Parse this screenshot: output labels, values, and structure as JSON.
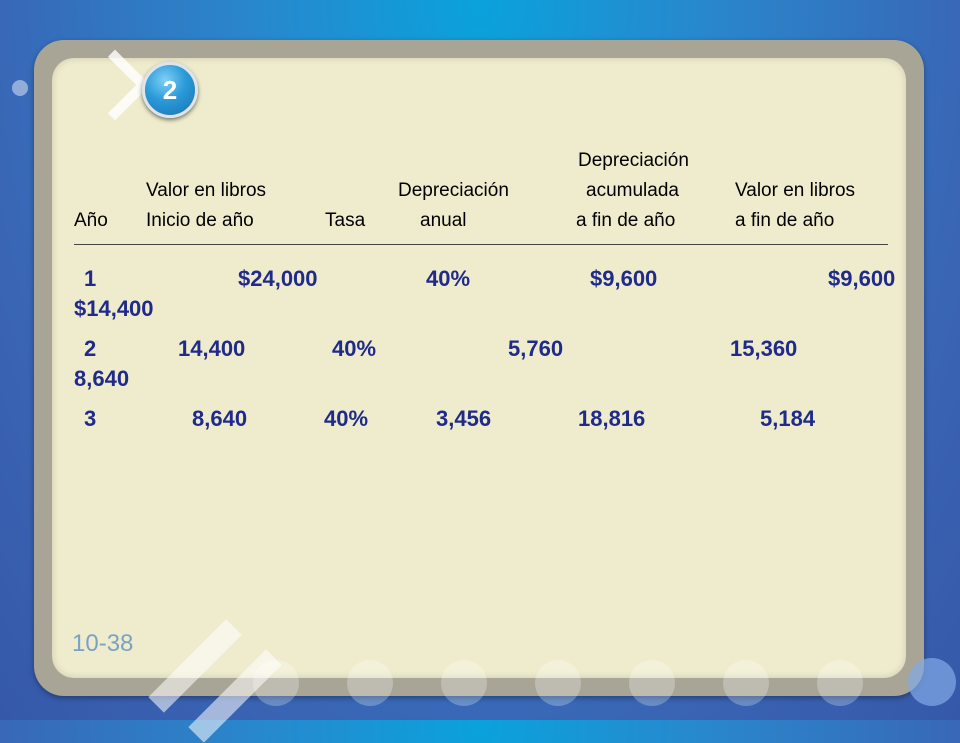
{
  "slide": {
    "badge_number": "2",
    "slide_number": "10-38"
  },
  "header": {
    "dep_acum_line1": "Depreciación",
    "valor_inicio_line1": "Valor en libros",
    "depreciacion_anual_line1": "Depreciación",
    "dep_acum_line2": "acumulada",
    "valor_fin_line1": "Valor en libros",
    "ano": "Año",
    "valor_inicio_line2": "Inicio de año",
    "tasa": "Tasa",
    "depreciacion_anual_line2": "anual",
    "dep_acum_line3": "a fin de año",
    "valor_fin_line2": "a fin de año"
  },
  "rows": [
    {
      "year": "1",
      "start_value": "$24,000",
      "rate": "40%",
      "annual": "$9,600",
      "accumulated": "$9,600",
      "end_value": "$14,400"
    },
    {
      "year": "2",
      "start_value": "14,400",
      "rate": "40%",
      "annual": "5,760",
      "accumulated": "15,360",
      "end_value": "8,640"
    },
    {
      "year": "3",
      "start_value": "8,640",
      "rate": "40%",
      "annual": "3,456",
      "accumulated": "18,816",
      "end_value": "5,184"
    }
  ]
}
